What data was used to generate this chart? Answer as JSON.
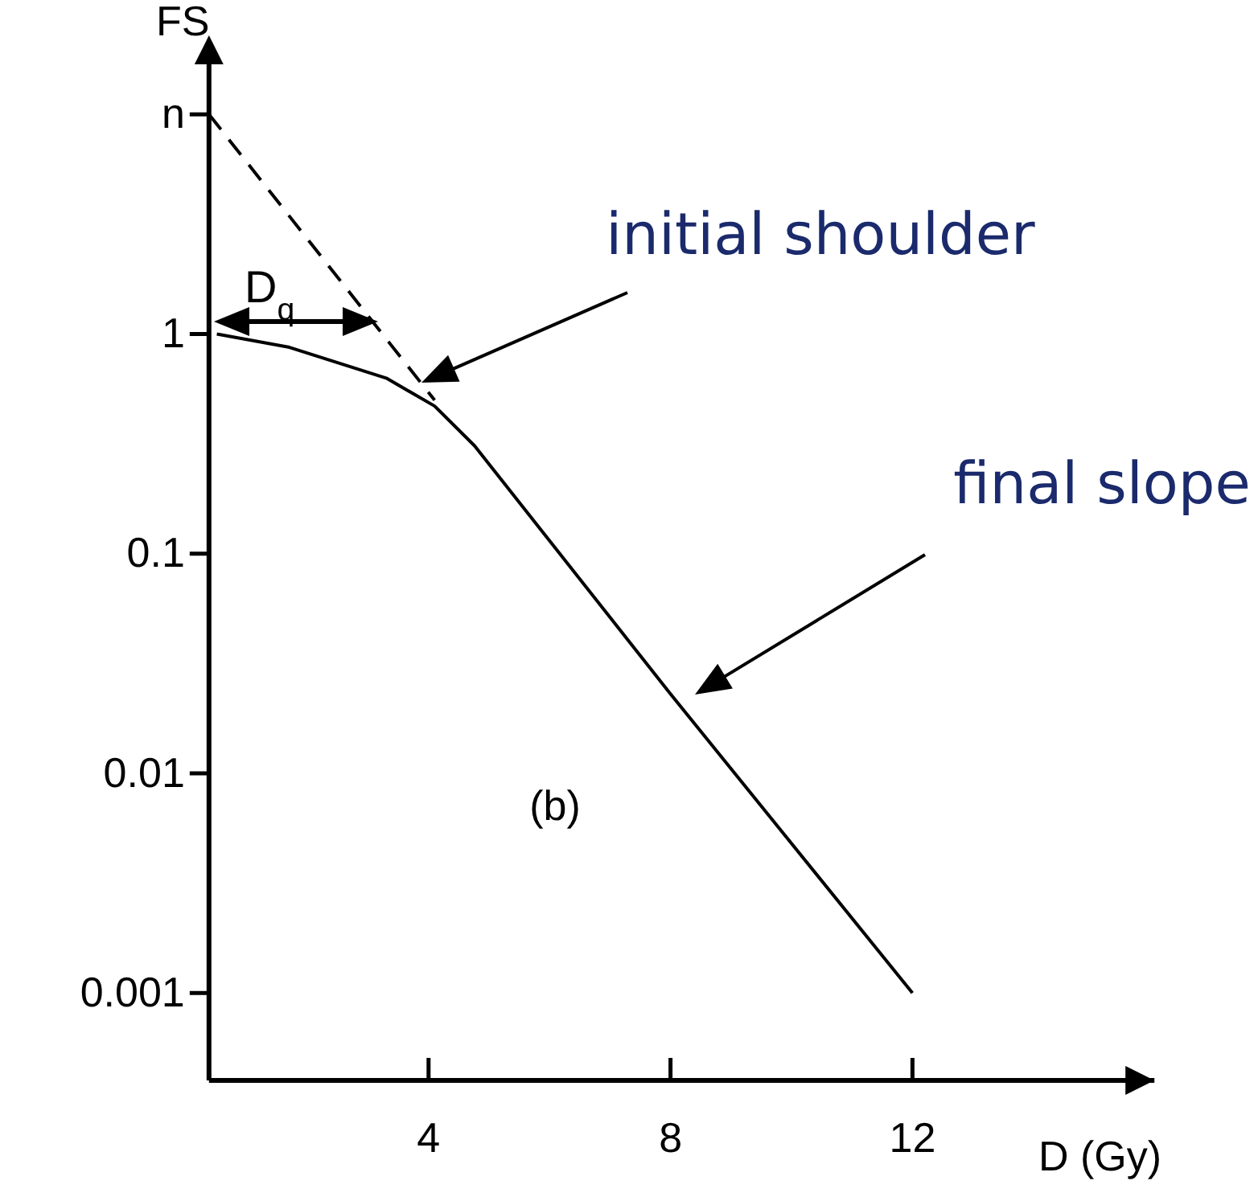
{
  "chart_data": {
    "type": "line",
    "xlabel": "D (Gy)",
    "ylabel": "FS",
    "log": "y",
    "xlim": [
      0.37,
      16
    ],
    "xticks": [
      4,
      8,
      12
    ],
    "ylim": [
      0.0004,
      20
    ],
    "yticks": [
      0.001,
      0.01,
      0.1,
      1,
      {
        "value": 10,
        "label": "n"
      }
    ],
    "grid": false,
    "marker": "none",
    "series": [
      {
        "color": "#000000",
        "x": [
          0.5,
          1.7,
          3.3,
          4.1,
          4.76,
          8,
          12
        ],
        "values": [
          1,
          0.87,
          0.63,
          0.47,
          0.31,
          0.023,
          0.001
        ]
      },
      {
        "color": "#000000",
        "line_style": "dashed",
        "x": [
          0.37,
          4.1
        ],
        "values": [
          10,
          0.5
        ]
      }
    ],
    "annotations": [
      "D$_{q}$",
      "initial shoulder",
      "final slope",
      "(b)"
    ]
  }
}
